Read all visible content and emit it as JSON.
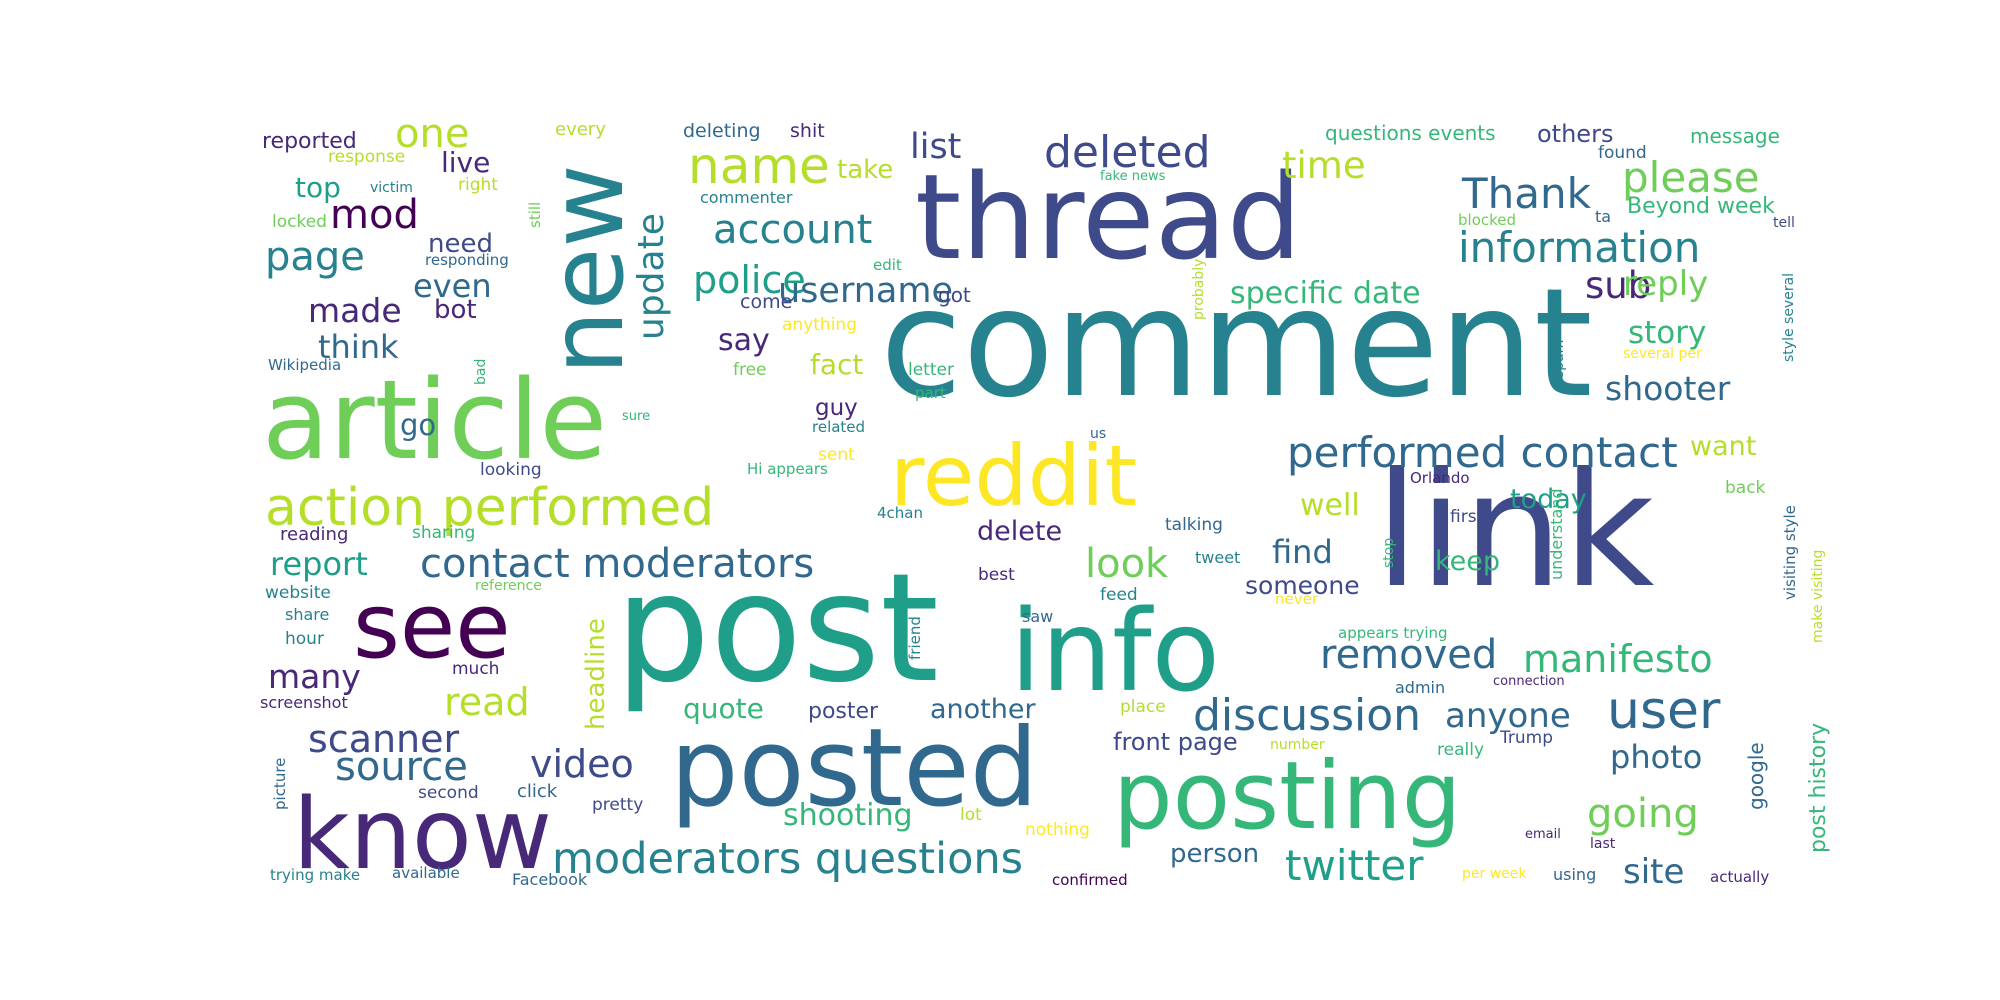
{
  "word_cloud": {
    "palette": [
      "#440154",
      "#482878",
      "#3e4a89",
      "#31688e",
      "#26828e",
      "#1f9e89",
      "#35b779",
      "#6ece58",
      "#b5de2b",
      "#fde725"
    ],
    "words": [
      {
        "text": "comment",
        "color": "#26828e"
      },
      {
        "text": "thread",
        "color": "#3e4a89"
      },
      {
        "text": "link",
        "color": "#3e4a89"
      },
      {
        "text": "post",
        "color": "#1f9e89"
      },
      {
        "text": "article",
        "color": "#6ece58"
      },
      {
        "text": "info",
        "color": "#1f9e89"
      },
      {
        "text": "new",
        "color": "#26828e"
      },
      {
        "text": "posted",
        "color": "#31688e"
      },
      {
        "text": "posting",
        "color": "#35b779"
      },
      {
        "text": "know",
        "color": "#482878"
      },
      {
        "text": "see",
        "color": "#440154"
      },
      {
        "text": "reddit",
        "color": "#fde725"
      },
      {
        "text": "action performed",
        "color": "#b5de2b"
      },
      {
        "text": "contact moderators",
        "color": "#31688e"
      },
      {
        "text": "moderators questions",
        "color": "#26828e"
      },
      {
        "text": "performed contact",
        "color": "#31688e"
      },
      {
        "text": "discussion",
        "color": "#31688e"
      },
      {
        "text": "removed",
        "color": "#31688e"
      },
      {
        "text": "user",
        "color": "#31688e"
      },
      {
        "text": "name",
        "color": "#b5de2b"
      },
      {
        "text": "deleted",
        "color": "#3e4a89"
      },
      {
        "text": "update",
        "color": "#26828e"
      },
      {
        "text": "account",
        "color": "#26828e"
      },
      {
        "text": "police",
        "color": "#1f9e89"
      },
      {
        "text": "username",
        "color": "#31688e"
      },
      {
        "text": "information",
        "color": "#26828e"
      },
      {
        "text": "please",
        "color": "#6ece58"
      },
      {
        "text": "Thank",
        "color": "#31688e"
      },
      {
        "text": "manifesto",
        "color": "#35b779"
      },
      {
        "text": "twitter",
        "color": "#1f9e89"
      },
      {
        "text": "going",
        "color": "#6ece58"
      },
      {
        "text": "source",
        "color": "#31688e"
      },
      {
        "text": "scanner",
        "color": "#3e4a89"
      },
      {
        "text": "video",
        "color": "#3e4a89"
      },
      {
        "text": "look",
        "color": "#6ece58"
      },
      {
        "text": "one",
        "color": "#b5de2b"
      },
      {
        "text": "mod",
        "color": "#440154"
      },
      {
        "text": "page",
        "color": "#26828e"
      },
      {
        "text": "made",
        "color": "#482878"
      },
      {
        "text": "think",
        "color": "#31688e"
      },
      {
        "text": "even",
        "color": "#31688e"
      },
      {
        "text": "list",
        "color": "#3e4a89"
      },
      {
        "text": "time",
        "color": "#b5de2b"
      },
      {
        "text": "sub",
        "color": "#482878"
      },
      {
        "text": "specific date",
        "color": "#35b779"
      },
      {
        "text": "reply",
        "color": "#6ece58"
      },
      {
        "text": "story",
        "color": "#35b779"
      },
      {
        "text": "shooter",
        "color": "#31688e"
      },
      {
        "text": "report",
        "color": "#1f9e89"
      },
      {
        "text": "many",
        "color": "#482878"
      },
      {
        "text": "read",
        "color": "#b5de2b"
      },
      {
        "text": "anyone",
        "color": "#31688e"
      },
      {
        "text": "site",
        "color": "#31688e"
      },
      {
        "text": "find",
        "color": "#31688e"
      },
      {
        "text": "photo",
        "color": "#31688e"
      },
      {
        "text": "well",
        "color": "#b5de2b"
      },
      {
        "text": "today",
        "color": "#1f9e89"
      },
      {
        "text": "keep",
        "color": "#35b779"
      },
      {
        "text": "want",
        "color": "#b5de2b"
      },
      {
        "text": "shooting",
        "color": "#35b779"
      },
      {
        "text": "quote",
        "color": "#35b779"
      },
      {
        "text": "another",
        "color": "#31688e"
      },
      {
        "text": "say",
        "color": "#482878"
      },
      {
        "text": "fact",
        "color": "#b5de2b"
      },
      {
        "text": "delete",
        "color": "#482878"
      },
      {
        "text": "someone",
        "color": "#3e4a89"
      },
      {
        "text": "headline",
        "color": "#b5de2b"
      },
      {
        "text": "go",
        "color": "#31688e"
      },
      {
        "text": "live",
        "color": "#482878"
      },
      {
        "text": "need",
        "color": "#3e4a89"
      },
      {
        "text": "bot",
        "color": "#482878"
      },
      {
        "text": "top",
        "color": "#1f9e89"
      },
      {
        "text": "take",
        "color": "#b5de2b"
      },
      {
        "text": "guy",
        "color": "#482878"
      },
      {
        "text": "poster",
        "color": "#3e4a89"
      },
      {
        "text": "front page",
        "color": "#3e4a89"
      },
      {
        "text": "person",
        "color": "#31688e"
      },
      {
        "text": "Beyond week",
        "color": "#35b779"
      },
      {
        "text": "post history",
        "color": "#35b779"
      },
      {
        "text": "google",
        "color": "#31688e"
      },
      {
        "text": "reported",
        "color": "#482878"
      },
      {
        "text": "every",
        "color": "#b5de2b"
      },
      {
        "text": "deleting",
        "color": "#31688e"
      },
      {
        "text": "shit",
        "color": "#482878"
      },
      {
        "text": "questions events",
        "color": "#35b779"
      },
      {
        "text": "others",
        "color": "#3e4a89"
      },
      {
        "text": "message",
        "color": "#35b779"
      },
      {
        "text": "response",
        "color": "#b5de2b"
      },
      {
        "text": "victim",
        "color": "#26828e"
      },
      {
        "text": "right",
        "color": "#b5de2b"
      },
      {
        "text": "locked",
        "color": "#6ece58"
      },
      {
        "text": "still",
        "color": "#6ece58"
      },
      {
        "text": "commenter",
        "color": "#26828e"
      },
      {
        "text": "fake news",
        "color": "#35b779"
      },
      {
        "text": "found",
        "color": "#31688e"
      },
      {
        "text": "blocked",
        "color": "#6ece58"
      },
      {
        "text": "ta",
        "color": "#31688e"
      },
      {
        "text": "tell",
        "color": "#3e4a89"
      },
      {
        "text": "responding",
        "color": "#31688e"
      },
      {
        "text": "edit",
        "color": "#35b779"
      },
      {
        "text": "got",
        "color": "#3e4a89"
      },
      {
        "text": "probably",
        "color": "#b5de2b"
      },
      {
        "text": "come",
        "color": "#3e4a89"
      },
      {
        "text": "anything",
        "color": "#fde725"
      },
      {
        "text": "Wikipedia",
        "color": "#31688e"
      },
      {
        "text": "bad",
        "color": "#35b779"
      },
      {
        "text": "free",
        "color": "#6ece58"
      },
      {
        "text": "letter",
        "color": "#35b779"
      },
      {
        "text": "part",
        "color": "#35b779"
      },
      {
        "text": "sure",
        "color": "#35b779"
      },
      {
        "text": "related",
        "color": "#26828e"
      },
      {
        "text": "sent",
        "color": "#fde725"
      },
      {
        "text": "us",
        "color": "#31688e"
      },
      {
        "text": "spam",
        "color": "#26828e"
      },
      {
        "text": "several per",
        "color": "#fde725"
      },
      {
        "text": "style several",
        "color": "#26828e"
      },
      {
        "text": "Orlando",
        "color": "#482878"
      },
      {
        "text": "Hi appears",
        "color": "#35b779"
      },
      {
        "text": "looking",
        "color": "#3e4a89"
      },
      {
        "text": "back",
        "color": "#6ece58"
      },
      {
        "text": "reading",
        "color": "#482878"
      },
      {
        "text": "sharing",
        "color": "#35b779"
      },
      {
        "text": "4chan",
        "color": "#26828e"
      },
      {
        "text": "talking",
        "color": "#31688e"
      },
      {
        "text": "first",
        "color": "#3e4a89"
      },
      {
        "text": "understand",
        "color": "#35b779"
      },
      {
        "text": "visiting style",
        "color": "#31688e"
      },
      {
        "text": "make visiting",
        "color": "#b5de2b"
      },
      {
        "text": "stop",
        "color": "#35b779"
      },
      {
        "text": "tweet",
        "color": "#26828e"
      },
      {
        "text": "best",
        "color": "#482878"
      },
      {
        "text": "website",
        "color": "#26828e"
      },
      {
        "text": "reference",
        "color": "#6ece58"
      },
      {
        "text": "feed",
        "color": "#26828e"
      },
      {
        "text": "never",
        "color": "#fde725"
      },
      {
        "text": "friend",
        "color": "#26828e"
      },
      {
        "text": "saw",
        "color": "#31688e"
      },
      {
        "text": "share",
        "color": "#26828e"
      },
      {
        "text": "hour",
        "color": "#26828e"
      },
      {
        "text": "much",
        "color": "#482878"
      },
      {
        "text": "appears trying",
        "color": "#35b779"
      },
      {
        "text": "admin",
        "color": "#31688e"
      },
      {
        "text": "connection",
        "color": "#482878"
      },
      {
        "text": "screenshot",
        "color": "#482878"
      },
      {
        "text": "place",
        "color": "#b5de2b"
      },
      {
        "text": "number",
        "color": "#b5de2b"
      },
      {
        "text": "really",
        "color": "#35b779"
      },
      {
        "text": "Trump",
        "color": "#3e4a89"
      },
      {
        "text": "picture",
        "color": "#31688e"
      },
      {
        "text": "second",
        "color": "#3e4a89"
      },
      {
        "text": "click",
        "color": "#31688e"
      },
      {
        "text": "pretty",
        "color": "#3e4a89"
      },
      {
        "text": "lot",
        "color": "#b5de2b"
      },
      {
        "text": "nothing",
        "color": "#fde725"
      },
      {
        "text": "email",
        "color": "#482878"
      },
      {
        "text": "last",
        "color": "#482878"
      },
      {
        "text": "trying make",
        "color": "#26828e"
      },
      {
        "text": "available",
        "color": "#31688e"
      },
      {
        "text": "Facebook",
        "color": "#31688e"
      },
      {
        "text": "confirmed",
        "color": "#440154"
      },
      {
        "text": "per week",
        "color": "#fde725"
      },
      {
        "text": "using",
        "color": "#31688e"
      },
      {
        "text": "actually",
        "color": "#482878"
      }
    ]
  }
}
